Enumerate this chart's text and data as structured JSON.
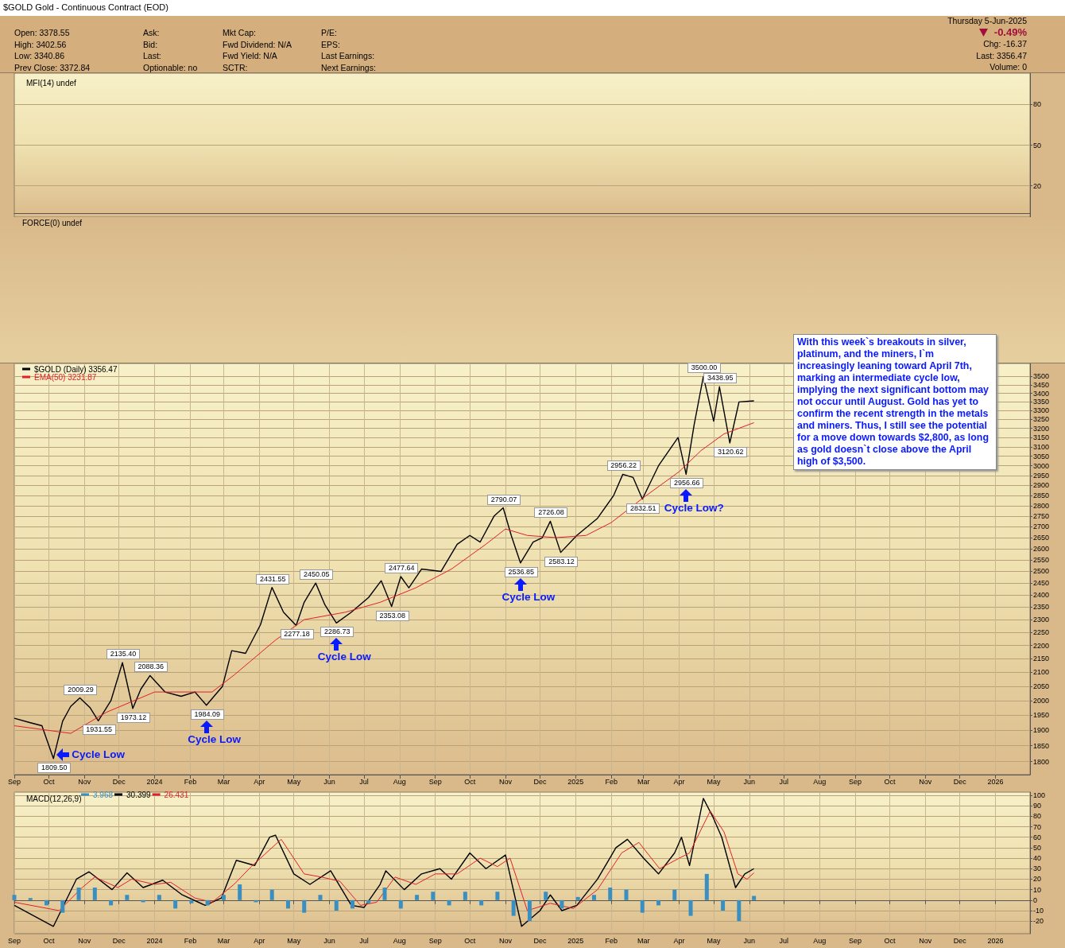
{
  "chart_data": [
    {
      "type": "other",
      "title": "$GOLD Gold - Continuous Contract (EOD)",
      "annotations": [
        "Open: 3378.55",
        "High: 3402.56",
        "Low: 3340.86",
        "Prev Close: 3372.84",
        "Ask:",
        "Bid:",
        "Last:",
        "Optionable: no",
        "Mkt Cap:",
        "Fwd Dividend: N/A",
        "Fwd Yield: N/A",
        "SCTR:",
        "P/E:",
        "EPS:",
        "Last Earnings:",
        "Next Earnings:",
        "Thursday 5-Jun-2025",
        "-0.49%",
        "Chg: -16.37",
        "Last: 3356.47",
        "Volume: 0"
      ]
    },
    {
      "type": "line",
      "title": "MFI(14) undef",
      "xlim": [
        "2023-09-01",
        "2026-01-31"
      ],
      "ylim": [
        -3,
        103
      ],
      "yticks": [
        20,
        50,
        80
      ],
      "grid": true,
      "tick_labels": "y"
    },
    {
      "type": "other",
      "title": "FORCE(0) undef"
    },
    {
      "type": "line",
      "xlim": [
        "2023-09-01",
        "2026-01-31"
      ],
      "ylim": [
        1760,
        3580
      ],
      "log": "y",
      "grid": true,
      "legend": "top left",
      "xticks": [
        {
          "value": "2023-09-01",
          "label": "Sep"
        },
        {
          "value": "2023-10-01",
          "label": "Oct"
        },
        {
          "value": "2023-11-01",
          "label": "Nov"
        },
        {
          "value": "2023-12-01",
          "label": "Dec"
        },
        {
          "value": "2024-01-01",
          "label": "2024"
        },
        {
          "value": "2024-02-01",
          "label": "Feb"
        },
        {
          "value": "2024-03-01",
          "label": "Mar"
        },
        {
          "value": "2024-04-01",
          "label": "Apr"
        },
        {
          "value": "2024-05-01",
          "label": "May"
        },
        {
          "value": "2024-06-01",
          "label": "Jun"
        },
        {
          "value": "2024-07-01",
          "label": "Jul"
        },
        {
          "value": "2024-08-01",
          "label": "Aug"
        },
        {
          "value": "2024-09-01",
          "label": "Sep"
        },
        {
          "value": "2024-10-01",
          "label": "Oct"
        },
        {
          "value": "2024-11-01",
          "label": "Nov"
        },
        {
          "value": "2024-12-01",
          "label": "Dec"
        },
        {
          "value": "2025-01-01",
          "label": "2025"
        },
        {
          "value": "2025-02-01",
          "label": "Feb"
        },
        {
          "value": "2025-03-01",
          "label": "Mar"
        },
        {
          "value": "2025-04-01",
          "label": "Apr"
        },
        {
          "value": "2025-05-01",
          "label": "May"
        },
        {
          "value": "2025-06-01",
          "label": "Jun"
        },
        {
          "value": "2025-07-01",
          "label": "Jul"
        },
        {
          "value": "2025-08-01",
          "label": "Aug"
        },
        {
          "value": "2025-09-01",
          "label": "Sep"
        },
        {
          "value": "2025-10-01",
          "label": "Oct"
        },
        {
          "value": "2025-11-01",
          "label": "Nov"
        },
        {
          "value": "2025-12-01",
          "label": "Dec"
        },
        {
          "value": "2026-01-01",
          "label": "2026"
        }
      ],
      "yticks": [
        1800,
        1850,
        1900,
        1950,
        2000,
        2050,
        2100,
        2150,
        2200,
        2250,
        2300,
        2350,
        2400,
        2450,
        2500,
        2550,
        2600,
        2650,
        2700,
        2750,
        2800,
        2850,
        2900,
        2950,
        3000,
        3050,
        3100,
        3150,
        3200,
        3250,
        3300,
        3350,
        3400,
        3450,
        3500
      ],
      "series": [
        {
          "name": "$GOLD (Daily) 3356.47",
          "color": "#000000",
          "x": [
            "2023-09-01",
            "2023-09-15",
            "2023-09-25",
            "2023-10-05",
            "2023-10-13",
            "2023-10-20",
            "2023-10-28",
            "2023-11-06",
            "2023-11-13",
            "2023-11-24",
            "2023-12-04",
            "2023-12-13",
            "2023-12-20",
            "2023-12-28",
            "2024-01-10",
            "2024-01-24",
            "2024-02-05",
            "2024-02-15",
            "2024-02-29",
            "2024-03-08",
            "2024-03-20",
            "2024-04-02",
            "2024-04-12",
            "2024-04-22",
            "2024-05-03",
            "2024-05-10",
            "2024-05-20",
            "2024-05-28",
            "2024-06-07",
            "2024-06-20",
            "2024-07-05",
            "2024-07-16",
            "2024-07-25",
            "2024-08-02",
            "2024-08-09",
            "2024-08-20",
            "2024-09-06",
            "2024-09-20",
            "2024-10-01",
            "2024-10-10",
            "2024-10-22",
            "2024-10-30",
            "2024-11-06",
            "2024-11-14",
            "2024-11-25",
            "2024-12-03",
            "2024-12-10",
            "2024-12-19",
            "2025-01-02",
            "2025-01-20",
            "2025-02-03",
            "2025-02-11",
            "2025-02-20",
            "2025-02-28",
            "2025-03-14",
            "2025-03-31",
            "2025-04-07",
            "2025-04-14",
            "2025-04-22",
            "2025-05-01",
            "2025-05-06",
            "2025-05-15",
            "2025-05-23",
            "2025-06-05"
          ],
          "values": [
            1940,
            1925,
            1915,
            1809.5,
            1930,
            1980,
            2009.29,
            1975,
            1931.55,
            2000,
            2135.4,
            1973.12,
            2040,
            2088.36,
            2030,
            2015,
            2030,
            1984.09,
            2050,
            2180,
            2170,
            2280,
            2431.55,
            2330,
            2277.18,
            2370,
            2450.05,
            2360,
            2286.73,
            2330,
            2390,
            2460,
            2353.08,
            2477.64,
            2430,
            2510,
            2500,
            2620,
            2660,
            2630,
            2750,
            2790.07,
            2660,
            2536.85,
            2630,
            2650,
            2726.08,
            2583.12,
            2660,
            2740,
            2850,
            2956.22,
            2940,
            2832.51,
            3000,
            3150,
            2956.66,
            3220,
            3500.0,
            3240,
            3438.95,
            3120.62,
            3350,
            3356.47
          ]
        },
        {
          "name": "EMA(50) 3231.87",
          "color": "#e0202a",
          "x": [
            "2023-09-01",
            "2023-10-20",
            "2023-11-20",
            "2024-01-01",
            "2024-02-20",
            "2024-03-10",
            "2024-04-15",
            "2024-05-10",
            "2024-06-15",
            "2024-07-15",
            "2024-08-15",
            "2024-09-15",
            "2024-10-15",
            "2024-11-01",
            "2024-11-20",
            "2024-12-15",
            "2025-01-10",
            "2025-02-01",
            "2025-03-01",
            "2025-04-01",
            "2025-04-20",
            "2025-05-10",
            "2025-06-05"
          ],
          "values": [
            1915,
            1890,
            1960,
            2030,
            2030,
            2090,
            2220,
            2300,
            2330,
            2370,
            2430,
            2510,
            2620,
            2690,
            2660,
            2650,
            2660,
            2720,
            2840,
            2970,
            3080,
            3170,
            3231.87
          ]
        }
      ],
      "annotations": [
        {
          "text": "1809.50",
          "x": "2023-10-05",
          "y": 1809.5
        },
        {
          "text": "2009.29",
          "x": "2023-10-28",
          "y": 2009.29
        },
        {
          "text": "1931.55",
          "x": "2023-11-13",
          "y": 1931.55
        },
        {
          "text": "2135.40",
          "x": "2023-12-04",
          "y": 2135.4
        },
        {
          "text": "1973.12",
          "x": "2023-12-13",
          "y": 1973.12
        },
        {
          "text": "2088.36",
          "x": "2023-12-28",
          "y": 2088.36
        },
        {
          "text": "1984.09",
          "x": "2024-02-15",
          "y": 1984.09
        },
        {
          "text": "2431.55",
          "x": "2024-04-12",
          "y": 2431.55
        },
        {
          "text": "2277.18",
          "x": "2024-05-03",
          "y": 2277.18
        },
        {
          "text": "2450.05",
          "x": "2024-05-20",
          "y": 2450.05
        },
        {
          "text": "2286.73",
          "x": "2024-06-07",
          "y": 2286.73
        },
        {
          "text": "2353.08",
          "x": "2024-07-25",
          "y": 2353.08
        },
        {
          "text": "2477.64",
          "x": "2024-08-02",
          "y": 2477.64
        },
        {
          "text": "2790.07",
          "x": "2024-10-30",
          "y": 2790.07
        },
        {
          "text": "2536.85",
          "x": "2024-11-14",
          "y": 2536.85
        },
        {
          "text": "2726.08",
          "x": "2024-12-10",
          "y": 2726.08
        },
        {
          "text": "2583.12",
          "x": "2024-12-19",
          "y": 2583.12
        },
        {
          "text": "2956.22",
          "x": "2025-02-11",
          "y": 2956.22
        },
        {
          "text": "2832.51",
          "x": "2025-02-28",
          "y": 2832.51
        },
        {
          "text": "2956.66",
          "x": "2025-04-07",
          "y": 2956.66
        },
        {
          "text": "3500.00",
          "x": "2025-04-22",
          "y": 3500.0
        },
        {
          "text": "3438.95",
          "x": "2025-05-06",
          "y": 3438.95
        },
        {
          "text": "3120.62",
          "x": "2025-05-15",
          "y": 3120.62
        },
        {
          "text": "Cycle Low",
          "x": "2023-10-05",
          "y": 1809.5
        },
        {
          "text": "Cycle Low",
          "x": "2024-02-15",
          "y": 1984.09
        },
        {
          "text": "Cycle Low",
          "x": "2024-06-07",
          "y": 2286.73
        },
        {
          "text": "Cycle Low",
          "x": "2024-11-14",
          "y": 2536.85
        },
        {
          "text": "Cycle Low?",
          "x": "2025-04-07",
          "y": 2956.66
        },
        "With this week`s breakouts in silver, platinum, and the miners, I`m increasingly leaning toward April 7th, marking an intermediate cycle low, implying the next significant bottom may not occur until August. Gold has yet to confirm the recent strength in the metals and miners. Thus, I still see the potential for a move down towards $2,800, as long as gold doesn`t close above the April high of $3,500."
      ]
    },
    {
      "type": "line",
      "title": "MACD(12,26,9)",
      "xlim": [
        "2023-09-01",
        "2026-01-31"
      ],
      "ylim": [
        -32,
        103
      ],
      "grid": true,
      "legend": "top left",
      "xticks": [
        {
          "value": "2023-09-01",
          "label": "Sep"
        },
        {
          "value": "2023-10-01",
          "label": "Oct"
        },
        {
          "value": "2023-11-01",
          "label": "Nov"
        },
        {
          "value": "2023-12-01",
          "label": "Dec"
        },
        {
          "value": "2024-01-01",
          "label": "2024"
        },
        {
          "value": "2024-02-01",
          "label": "Feb"
        },
        {
          "value": "2024-03-01",
          "label": "Mar"
        },
        {
          "value": "2024-04-01",
          "label": "Apr"
        },
        {
          "value": "2024-05-01",
          "label": "May"
        },
        {
          "value": "2024-06-01",
          "label": "Jun"
        },
        {
          "value": "2024-07-01",
          "label": "Jul"
        },
        {
          "value": "2024-08-01",
          "label": "Aug"
        },
        {
          "value": "2024-09-01",
          "label": "Sep"
        },
        {
          "value": "2024-10-01",
          "label": "Oct"
        },
        {
          "value": "2024-11-01",
          "label": "Nov"
        },
        {
          "value": "2024-12-01",
          "label": "Dec"
        },
        {
          "value": "2025-01-01",
          "label": "2025"
        },
        {
          "value": "2025-02-01",
          "label": "Feb"
        },
        {
          "value": "2025-03-01",
          "label": "Mar"
        },
        {
          "value": "2025-04-01",
          "label": "Apr"
        },
        {
          "value": "2025-05-01",
          "label": "May"
        },
        {
          "value": "2025-06-01",
          "label": "Jun"
        },
        {
          "value": "2025-07-01",
          "label": "Jul"
        },
        {
          "value": "2025-08-01",
          "label": "Aug"
        },
        {
          "value": "2025-09-01",
          "label": "Sep"
        },
        {
          "value": "2025-10-01",
          "label": "Oct"
        },
        {
          "value": "2025-11-01",
          "label": "Nov"
        },
        {
          "value": "2025-12-01",
          "label": "Dec"
        },
        {
          "value": "2026-01-01",
          "label": "2026"
        }
      ],
      "yticks": [
        -20,
        -10,
        0,
        10,
        20,
        30,
        40,
        50,
        60,
        70,
        80,
        90,
        100
      ],
      "series": [
        {
          "name": "3.968",
          "type": "bar",
          "color": "#3a8fc0",
          "x": [
            "2023-09-01",
            "2023-09-15",
            "2023-09-29",
            "2023-10-13",
            "2023-10-27",
            "2023-11-10",
            "2023-11-24",
            "2023-12-08",
            "2023-12-22",
            "2024-01-05",
            "2024-01-19",
            "2024-02-02",
            "2024-02-16",
            "2024-03-01",
            "2024-03-15",
            "2024-03-29",
            "2024-04-12",
            "2024-04-26",
            "2024-05-10",
            "2024-05-24",
            "2024-06-07",
            "2024-06-21",
            "2024-07-05",
            "2024-07-19",
            "2024-08-02",
            "2024-08-16",
            "2024-08-30",
            "2024-09-13",
            "2024-09-27",
            "2024-10-11",
            "2024-10-25",
            "2024-11-08",
            "2024-11-22",
            "2024-12-06",
            "2024-12-20",
            "2025-01-03",
            "2025-01-17",
            "2025-01-31",
            "2025-02-14",
            "2025-02-28",
            "2025-03-14",
            "2025-03-28",
            "2025-04-11",
            "2025-04-25",
            "2025-05-09",
            "2025-05-23",
            "2025-06-05"
          ],
          "values": [
            5,
            2,
            -5,
            -12,
            12,
            12,
            -5,
            5,
            -2,
            5,
            -8,
            -3,
            -5,
            5,
            15,
            -2,
            10,
            -8,
            -12,
            5,
            -10,
            -8,
            -3,
            12,
            -8,
            5,
            8,
            -5,
            8,
            -5,
            8,
            -15,
            -20,
            8,
            -8,
            3,
            5,
            12,
            10,
            -12,
            -5,
            10,
            -15,
            25,
            -10,
            -20,
            4
          ]
        },
        {
          "name": "30.399",
          "color": "#000000",
          "x": [
            "2023-09-01",
            "2023-10-05",
            "2023-10-25",
            "2023-11-05",
            "2023-11-25",
            "2023-12-08",
            "2023-12-22",
            "2024-01-08",
            "2024-01-25",
            "2024-02-14",
            "2024-02-28",
            "2024-03-12",
            "2024-03-28",
            "2024-04-10",
            "2024-04-15",
            "2024-05-01",
            "2024-05-15",
            "2024-06-02",
            "2024-06-20",
            "2024-07-01",
            "2024-07-15",
            "2024-07-20",
            "2024-08-05",
            "2024-08-20",
            "2024-09-05",
            "2024-09-15",
            "2024-10-01",
            "2024-10-15",
            "2024-11-01",
            "2024-11-15",
            "2024-12-01",
            "2024-12-10",
            "2024-12-20",
            "2025-01-02",
            "2025-01-20",
            "2025-02-05",
            "2025-02-15",
            "2025-03-01",
            "2025-03-14",
            "2025-03-28",
            "2025-04-03",
            "2025-04-10",
            "2025-04-22",
            "2025-04-30",
            "2025-05-08",
            "2025-05-20",
            "2025-05-28",
            "2025-06-05"
          ],
          "values": [
            -5,
            -25,
            20,
            27,
            10,
            26,
            12,
            19,
            5,
            -5,
            2,
            38,
            33,
            60,
            62,
            25,
            15,
            28,
            -5,
            -7,
            15,
            28,
            10,
            25,
            30,
            20,
            45,
            30,
            43,
            -25,
            -10,
            5,
            -10,
            -5,
            20,
            50,
            58,
            40,
            25,
            45,
            60,
            33,
            97,
            80,
            60,
            12,
            25,
            30
          ]
        },
        {
          "name": "26.431",
          "color": "#e0202a",
          "x": [
            "2023-09-01",
            "2023-10-10",
            "2023-10-30",
            "2023-11-10",
            "2023-11-30",
            "2023-12-12",
            "2024-01-01",
            "2024-01-15",
            "2024-02-05",
            "2024-02-20",
            "2024-03-10",
            "2024-03-25",
            "2024-04-20",
            "2024-05-10",
            "2024-05-25",
            "2024-06-10",
            "2024-06-28",
            "2024-07-12",
            "2024-07-28",
            "2024-08-15",
            "2024-09-01",
            "2024-09-20",
            "2024-10-10",
            "2024-10-25",
            "2024-11-05",
            "2024-11-20",
            "2024-12-10",
            "2024-12-30",
            "2025-01-20",
            "2025-02-10",
            "2025-02-25",
            "2025-03-15",
            "2025-04-01",
            "2025-04-10",
            "2025-04-28",
            "2025-05-10",
            "2025-05-22",
            "2025-05-30",
            "2025-06-05"
          ],
          "values": [
            -2,
            -10,
            12,
            22,
            12,
            20,
            15,
            17,
            2,
            -2,
            15,
            32,
            58,
            25,
            22,
            18,
            -5,
            -2,
            22,
            15,
            25,
            25,
            40,
            32,
            40,
            -10,
            -3,
            -8,
            10,
            45,
            55,
            30,
            40,
            45,
            85,
            65,
            25,
            20,
            26
          ]
        }
      ]
    }
  ]
}
